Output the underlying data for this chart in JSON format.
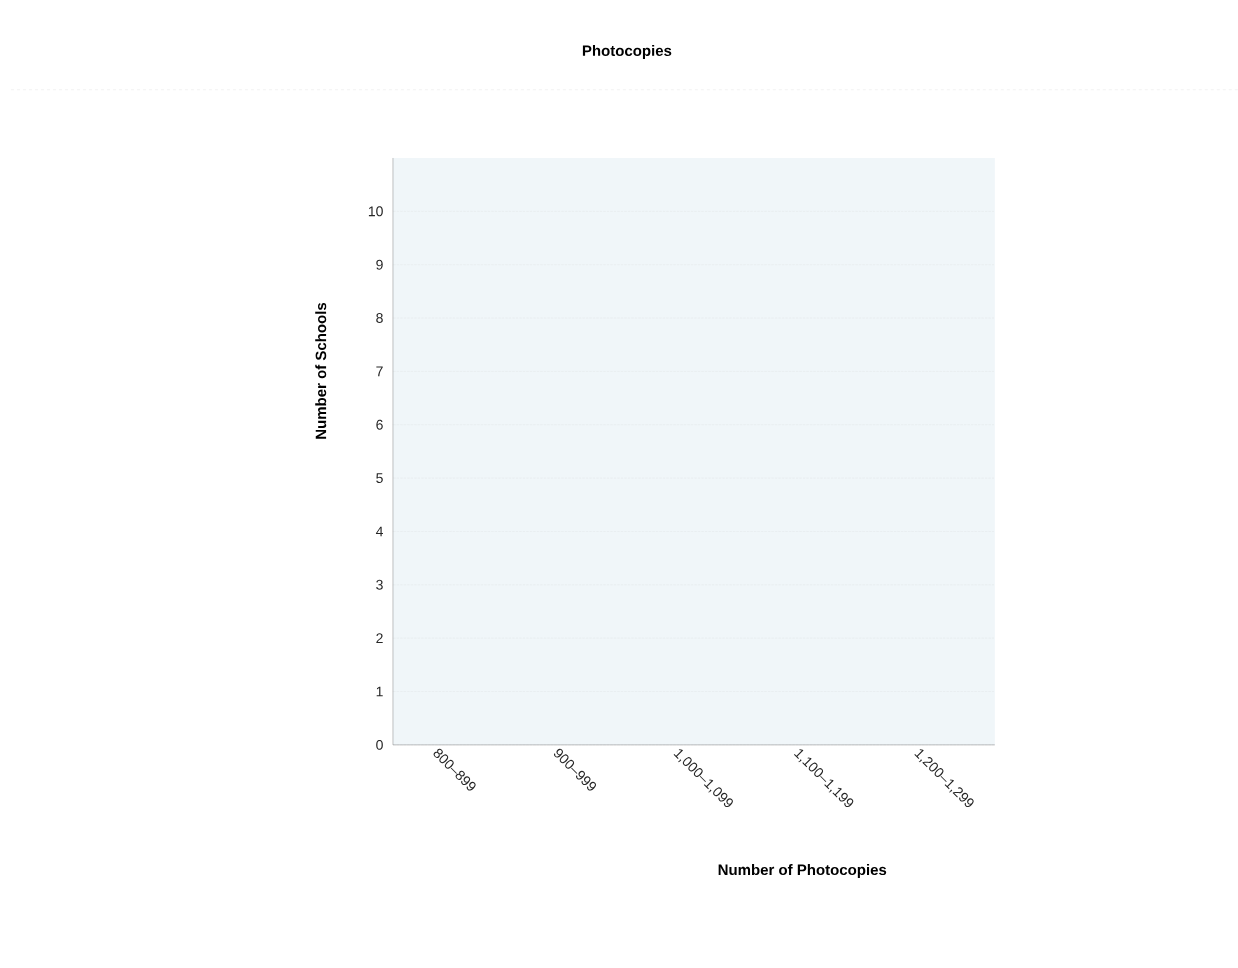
{
  "chart_data": {
    "type": "bar",
    "title": "Photocopies",
    "xlabel": "Number of Photocopies",
    "ylabel": "Number of Schools",
    "categories": [
      "800–899",
      "900–999",
      "1,000–1,099",
      "1,100–1,199",
      "1,200–1,299"
    ],
    "values": [
      null,
      null,
      null,
      null,
      null
    ],
    "ylim": [
      0,
      11
    ],
    "yticks": [
      0,
      1,
      2,
      3,
      4,
      5,
      6,
      7,
      8,
      9,
      10
    ],
    "grid": "y"
  }
}
